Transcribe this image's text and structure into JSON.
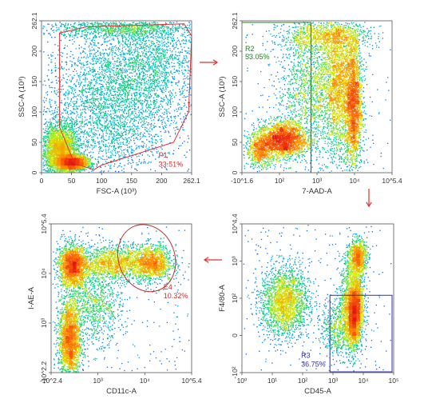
{
  "chart_data": [
    {
      "type": "scatter",
      "xlabel": "FSC-A (10³)",
      "ylabel": "SSC-A (10³)",
      "x_ticks": [
        "0",
        "50",
        "100",
        "150",
        "200",
        "262.1"
      ],
      "y_ticks": [
        "0",
        "50",
        "100",
        "150",
        "200",
        "262.1"
      ],
      "xlim": [
        0,
        262.1
      ],
      "ylim": [
        0,
        262.1
      ],
      "gate": {
        "name": "P1",
        "percent": "33.51%",
        "color": "#e03030"
      }
    },
    {
      "type": "scatter",
      "xlabel": "7-AAD-A",
      "ylabel": "SSC-A (10³)",
      "x_ticks": [
        "-10^1.6",
        "10²",
        "10³",
        "10⁴",
        "10^5.4"
      ],
      "y_ticks": [
        "0",
        "50",
        "100",
        "150",
        "200",
        "262.1"
      ],
      "xscale": "biexponential",
      "ylim": [
        0,
        262.1
      ],
      "gate": {
        "name": "R2",
        "percent": "53.05%",
        "color": "#208020"
      }
    },
    {
      "type": "scatter",
      "xlabel": "CD45-A",
      "ylabel": "F4/80-A",
      "x_ticks": [
        "10⁰",
        "10¹",
        "10²",
        "10³",
        "10⁴",
        "10⁵"
      ],
      "y_ticks": [
        "-10²",
        "0",
        "10²",
        "10³",
        "10^4.4"
      ],
      "xscale": "log",
      "yscale": "biexponential",
      "gate": {
        "name": "R3",
        "percent": "36.75%",
        "color": "#3030b0"
      }
    },
    {
      "type": "scatter",
      "xlabel": "CD11c-A",
      "ylabel": "I-AE-A",
      "x_ticks": [
        "-10^2.4",
        "10³",
        "10⁴",
        "10^5.4"
      ],
      "y_ticks": [
        "-10^2.2",
        "10³",
        "10⁴",
        "10^5.4"
      ],
      "xscale": "biexponential",
      "yscale": "biexponential",
      "gate": {
        "name": "E4",
        "percent": "10.32%",
        "color": "#c03030"
      }
    }
  ],
  "arrow_color": "#e03030"
}
